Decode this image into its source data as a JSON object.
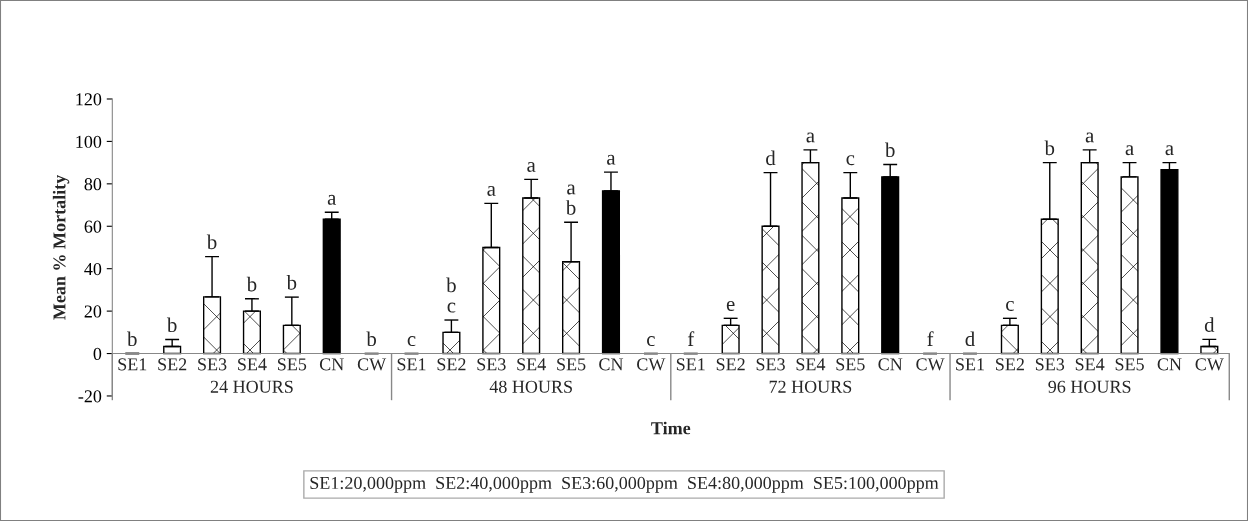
{
  "chart_data": {
    "type": "bar",
    "xlabel": "Time",
    "ylabel": "Mean % Mortality",
    "categories": [
      "SE1",
      "SE2",
      "SE3",
      "SE4",
      "SE5",
      "CN",
      "CW",
      "SE1",
      "SE2",
      "SE3",
      "SE4",
      "SE5",
      "CN",
      "CW",
      "SE1",
      "SE2",
      "SE3",
      "SE4",
      "SE5",
      "CN",
      "CW",
      "SE1",
      "SE2",
      "SE3",
      "SE4",
      "SE5",
      "CN",
      "CW"
    ],
    "values": [
      0,
      3.3,
      26.7,
      20,
      13.3,
      63.3,
      0,
      0,
      10,
      50,
      73.3,
      43.3,
      76.7,
      0,
      0,
      13.3,
      60,
      90,
      73.3,
      83.3,
      0,
      0,
      13.3,
      63.3,
      90,
      83.3,
      86.7,
      3.3
    ],
    "errors": [
      0,
      3.3,
      19,
      5.8,
      13.3,
      3.3,
      0,
      0,
      5.8,
      20.8,
      8.8,
      18.6,
      8.8,
      0,
      0,
      3.3,
      25.3,
      6,
      12,
      5.8,
      0,
      0,
      3.3,
      26.7,
      6,
      6.7,
      3.3,
      3.4
    ],
    "value_labels": [
      "b",
      "b",
      "b",
      "b",
      "b",
      "a",
      "b",
      "c",
      "b\nc",
      "a",
      "a",
      "a\nb",
      "a",
      "c",
      "f",
      "e",
      "d",
      "a",
      "c",
      "b",
      "f",
      "d",
      "c",
      "b",
      "a",
      "a",
      "a",
      "d"
    ],
    "colors": [
      "#ffffff",
      "#ffffff",
      "#ffffff",
      "#ffffff",
      "#ffffff",
      "#000000",
      "#ffffff",
      "#ffffff",
      "#ffffff",
      "#ffffff",
      "#ffffff",
      "#ffffff",
      "#000000",
      "#ffffff",
      "#ffffff",
      "#ffffff",
      "#ffffff",
      "#ffffff",
      "#ffffff",
      "#000000",
      "#ffffff",
      "#ffffff",
      "#ffffff",
      "#ffffff",
      "#ffffff",
      "#ffffff",
      "#000000",
      "#ffffff"
    ],
    "ylim": [
      -20,
      120
    ],
    "yticks": [
      -20,
      0,
      20,
      40,
      60,
      80,
      100,
      120
    ],
    "grid": false,
    "annotations": [
      "24 HOURS",
      "48 HOURS",
      "72 HOURS",
      "96 HOURS",
      "SE1:20,000ppm  SE2:40,000ppm  SE3:60,000ppm  SE4:80,000ppm  SE5:100,000ppm"
    ]
  }
}
